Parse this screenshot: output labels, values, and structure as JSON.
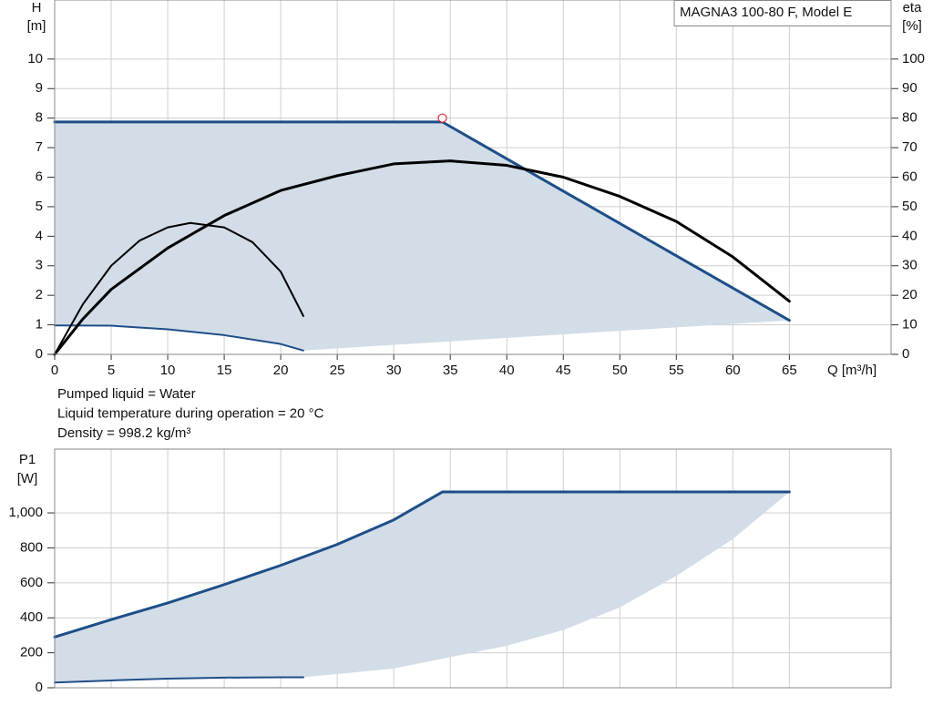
{
  "chart_data": [
    {
      "type": "line",
      "annotation": "MAGNA3 100-80 F, Model E",
      "y_label": "H",
      "y_unit": "[m]",
      "y2_label": "eta",
      "y2_unit": "[%]",
      "x_label": "Q [m³/h]",
      "xlim": [
        0,
        74
      ],
      "xticks": [
        0,
        5,
        10,
        15,
        20,
        25,
        30,
        35,
        40,
        45,
        50,
        55,
        60,
        65
      ],
      "ylim": [
        0,
        12
      ],
      "yticks": [
        0,
        1,
        2,
        3,
        4,
        5,
        6,
        7,
        8,
        9,
        10
      ],
      "y2lim": [
        0,
        120
      ],
      "y2ticks": [
        0,
        10,
        20,
        30,
        40,
        50,
        60,
        70,
        80,
        90,
        100
      ],
      "grid": true,
      "series": [
        {
          "color": "#1f4e89",
          "width": 3,
          "x": [
            0,
            34.3,
            65
          ],
          "values": [
            7.87,
            7.87,
            1.15
          ]
        },
        {
          "color": "#1f4e89",
          "width": 2,
          "x": [
            0,
            5,
            10,
            15,
            20,
            22
          ],
          "values": [
            0.98,
            0.97,
            0.85,
            0.65,
            0.35,
            0.13
          ]
        },
        {
          "color": "#000000",
          "width": 3,
          "axis": "y2",
          "x": [
            0,
            2.5,
            5,
            10,
            15,
            20,
            25,
            30,
            35,
            40,
            45,
            50,
            55,
            60,
            65
          ],
          "values": [
            0,
            12,
            22,
            36,
            47,
            55.5,
            60.5,
            64.5,
            65.5,
            64,
            60,
            53.5,
            45,
            33,
            18
          ]
        },
        {
          "color": "#000000",
          "width": 2,
          "axis": "y2",
          "x": [
            0,
            2.5,
            5,
            7.5,
            10,
            12,
            15,
            17.5,
            20,
            22
          ],
          "values": [
            0,
            17,
            30,
            38.5,
            43,
            44.5,
            43,
            38,
            28,
            13
          ]
        }
      ],
      "band": {
        "color": "#d2dde8",
        "upper": 0,
        "lower_x": [
          0,
          5,
          10,
          15,
          20,
          22,
          65
        ],
        "lower": [
          0.98,
          0.97,
          0.85,
          0.65,
          0.35,
          0.13,
          1.15
        ]
      },
      "marker": {
        "x": 34.3,
        "value": 8.0,
        "color": "#e03030"
      },
      "notes": [
        "Pumped liquid = Water",
        "Liquid temperature during operation = 20 °C",
        "Density = 998.2 kg/m³"
      ]
    },
    {
      "type": "line",
      "y_label": "P1",
      "y_unit": "[W]",
      "xlim": [
        0,
        74
      ],
      "ylim": [
        0,
        1365
      ],
      "yticks": [
        0,
        200,
        400,
        600,
        800,
        {
          "value": 1000,
          "label": "1,000"
        }
      ],
      "grid": true,
      "series": [
        {
          "color": "#1f4e89",
          "width": 3,
          "x": [
            0,
            5,
            10,
            15,
            20,
            25,
            30,
            34.3,
            65
          ],
          "values": [
            290,
            390,
            485,
            590,
            700,
            820,
            960,
            1120,
            1120
          ]
        },
        {
          "color": "#1f4e89",
          "width": 2,
          "x": [
            0,
            5,
            10,
            15,
            20,
            22
          ],
          "values": [
            30,
            42,
            52,
            58,
            60,
            60
          ]
        }
      ],
      "band": {
        "color": "#d2dde8",
        "upper": 0,
        "lower_x": [
          0,
          5,
          10,
          15,
          20,
          22,
          30,
          35,
          40,
          45,
          50,
          55,
          60,
          65
        ],
        "lower": [
          30,
          42,
          52,
          58,
          60,
          60,
          110,
          175,
          240,
          330,
          460,
          640,
          850,
          1120
        ]
      }
    }
  ]
}
